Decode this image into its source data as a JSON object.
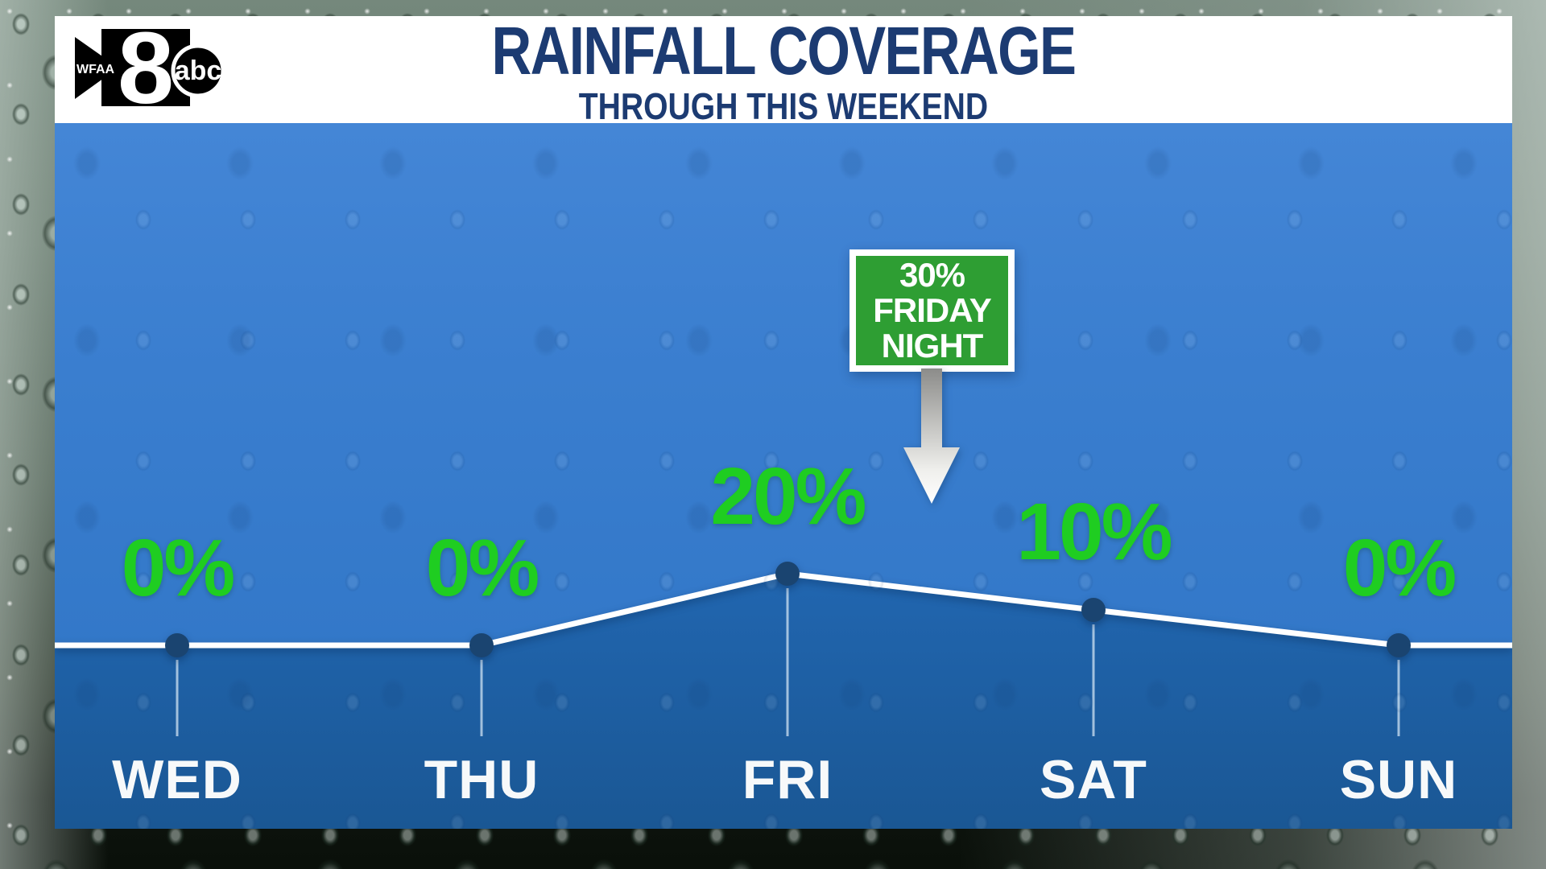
{
  "station": {
    "call_letters": "WFAA",
    "channel": "8",
    "network_label": "abc"
  },
  "header": {
    "title": "RAINFALL COVERAGE",
    "subtitle": "THROUGH THIS WEEKEND"
  },
  "chart_data": {
    "type": "line",
    "title": "RAINFALL COVERAGE THROUGH THIS WEEKEND",
    "categories": [
      "WED",
      "THU",
      "FRI",
      "SAT",
      "SUN"
    ],
    "values": [
      0,
      0,
      20,
      10,
      0
    ],
    "point_labels": [
      "0%",
      "0%",
      "20%",
      "10%",
      "0%"
    ],
    "ylim": [
      0,
      100
    ],
    "grid": false,
    "legend": false,
    "annotation": {
      "value_label": "30%",
      "line1": "FRIDAY",
      "line2": "NIGHT",
      "points_to": "FRI"
    },
    "colors": {
      "line": "#ffffff",
      "point": "#1a4470",
      "tick": "#cfe2f2",
      "area_top": "#2166b0",
      "area_bottom": "#1a5794",
      "value_label": "#1fcd21",
      "annotation_bg": "#2e9e33",
      "annotation_text": "#ffffff",
      "day_label": "#f7f9fa",
      "title_text": "#1c3b72",
      "panel_top": "#4486d6",
      "panel_bottom": "#2e74c4"
    }
  }
}
